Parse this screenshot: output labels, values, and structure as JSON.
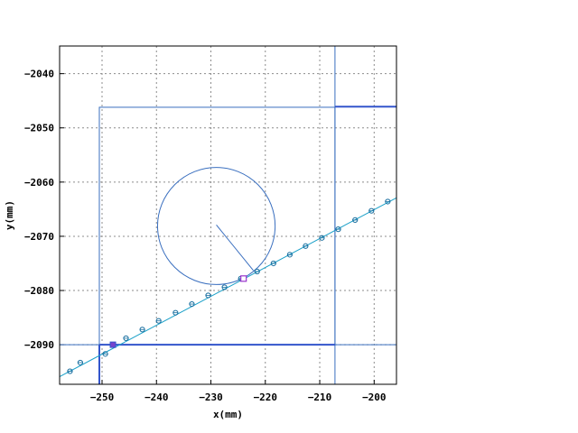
{
  "chart_data": {
    "type": "scatter",
    "xlabel": "x(mm)",
    "ylabel": "y(mm)",
    "xlim": [
      -257.8,
      -195.9
    ],
    "ylim": [
      -2097.3,
      -2034.9
    ],
    "x_ticks": [
      -250,
      -240,
      -230,
      -220,
      -210,
      -200
    ],
    "y_ticks": [
      -2040,
      -2050,
      -2060,
      -2070,
      -2080,
      -2090
    ],
    "x_tick_labels": [
      "−250",
      "−240",
      "−230",
      "−220",
      "−210",
      "−200"
    ],
    "y_tick_labels": [
      "−2040",
      "−2050",
      "−2060",
      "−2070",
      "−2080",
      "−2090"
    ],
    "grid": true,
    "colors": {
      "frame": "#000000",
      "grid": "#8c8c8c",
      "path": "#3a6fbf",
      "bold_path": "#3355cc",
      "marker": "#1aa0c8",
      "highlight": "#9933cc"
    },
    "series": [
      {
        "kind": "line_with_markers",
        "points": [
          [
            -255.9,
            -2094.9
          ],
          [
            -254.0,
            -2093.3
          ],
          [
            -249.4,
            -2091.7
          ],
          [
            -248.0,
            -2090.0
          ],
          [
            -245.6,
            -2088.8
          ],
          [
            -242.6,
            -2087.2
          ],
          [
            -239.6,
            -2085.6
          ],
          [
            -236.5,
            -2084.1
          ],
          [
            -233.5,
            -2082.5
          ],
          [
            -230.5,
            -2080.9
          ],
          [
            -227.5,
            -2079.4
          ],
          [
            -224.5,
            -2077.8
          ],
          [
            -221.5,
            -2076.5
          ],
          [
            -218.5,
            -2075.0
          ],
          [
            -215.5,
            -2073.4
          ],
          [
            -212.6,
            -2071.8
          ],
          [
            -209.6,
            -2070.3
          ],
          [
            -206.6,
            -2068.7
          ],
          [
            -203.5,
            -2067.0
          ],
          [
            -200.5,
            -2065.3
          ],
          [
            -197.5,
            -2063.6
          ]
        ],
        "line_x": [
          -257.8,
          -195.9
        ],
        "line_y": [
          -2095.9,
          -2062.9
        ]
      }
    ],
    "square_markers": [
      [
        -248.0,
        -2090.0
      ],
      [
        -224.0,
        -2077.8
      ]
    ],
    "circle": {
      "center": [
        -229.0,
        -2068.1
      ],
      "radius": 10.8
    },
    "radius_line": [
      [
        -229.0,
        -2067.9
      ],
      [
        -222.2,
        -2076.3
      ]
    ],
    "rectangles": [
      {
        "x1": -250.5,
        "y1": -2046.2,
        "x2": -207.2,
        "y2": -2090.0
      }
    ],
    "vertical_lines": [
      -207.2
    ],
    "horizontal_lines": [
      -2090.0
    ],
    "bold_segments": [
      [
        [
          -250.5,
          -2090.0
        ],
        [
          -250.5,
          -2097.3
        ]
      ],
      [
        [
          -207.2,
          -2046.1
        ],
        [
          -195.9,
          -2046.1
        ]
      ],
      [
        [
          -250.5,
          -2090.0
        ],
        [
          -207.2,
          -2090.0
        ]
      ]
    ]
  }
}
